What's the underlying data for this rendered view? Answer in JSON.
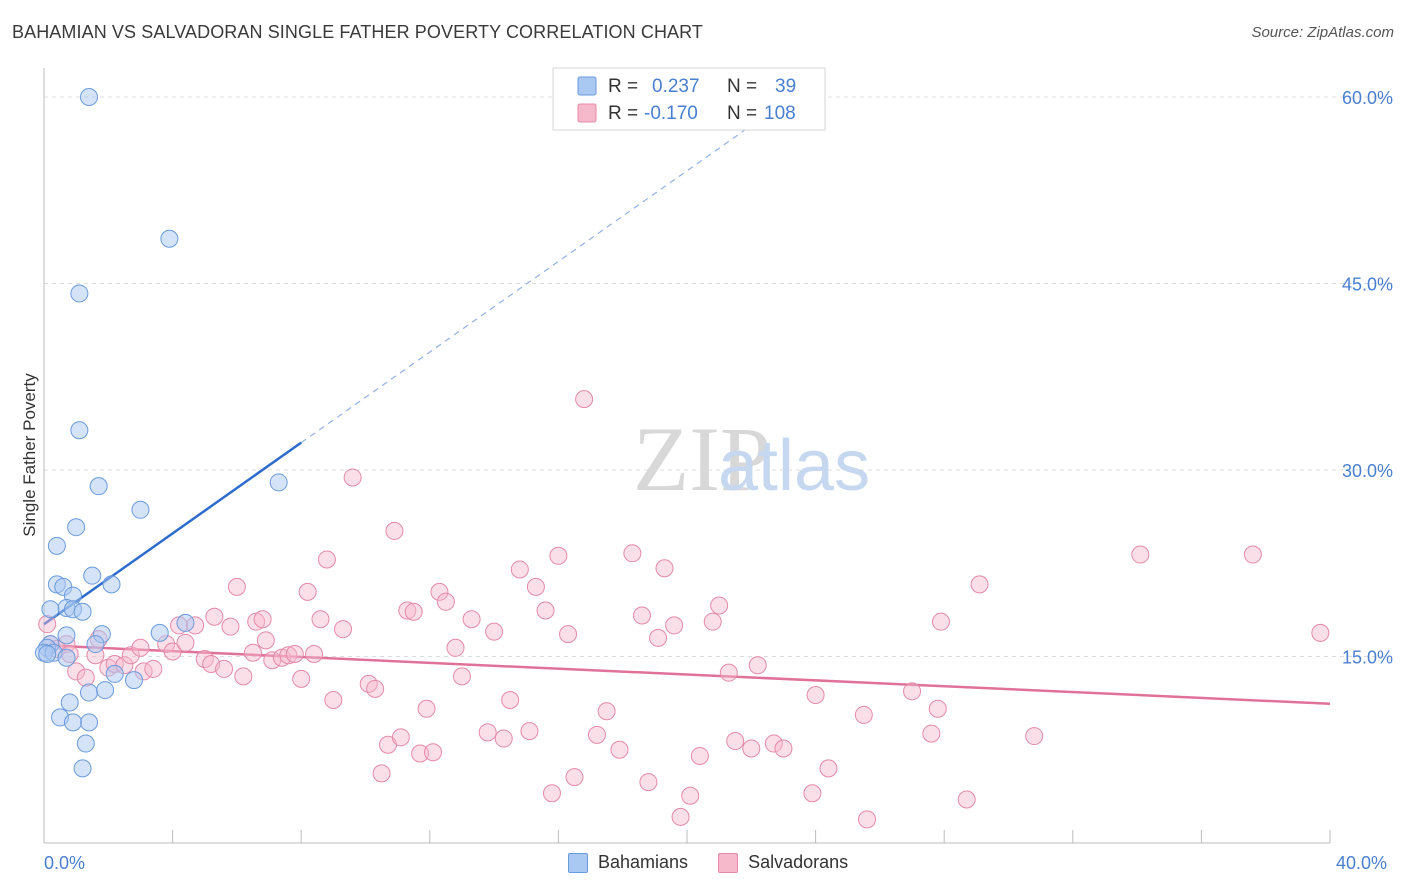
{
  "title": "BAHAMIAN VS SALVADORAN SINGLE FATHER POVERTY CORRELATION CHART",
  "source": "Source: ZipAtlas.com",
  "watermark": {
    "zip": "ZIP",
    "atlas": "atlas"
  },
  "colors": {
    "blue_fill": "#a9c8f2",
    "blue_stroke": "#6a9bdc",
    "blue_line": "#2d6ccc",
    "pink_fill": "#f6b8cb",
    "pink_stroke": "#e48aa8",
    "pink_line": "#e0729a",
    "axis_text": "#4a7fd0",
    "grid": "#dcdcdc"
  },
  "legend": {
    "rows": [
      {
        "r_label": "R =",
        "r_value": "0.237",
        "n_label": "N =",
        "n_value": "39"
      },
      {
        "r_label": "R =",
        "r_value": "-0.170",
        "n_label": "N =",
        "n_value": "108"
      }
    ]
  },
  "bottom_legend": {
    "series1": "Bahamians",
    "series2": "Salvadorans"
  },
  "x_axis": {
    "min_label": "0.0%",
    "max_label": "40.0%"
  },
  "chart_data": {
    "type": "scatter",
    "title": "BAHAMIAN VS SALVADORAN SINGLE FATHER POVERTY CORRELATION CHART",
    "xlabel": "",
    "ylabel": "Single Father Poverty",
    "xlim": [
      0,
      40
    ],
    "ylim": [
      0,
      60
    ],
    "y_ticks": [
      15,
      30,
      45,
      60
    ],
    "y_tick_labels": [
      "15.0%",
      "30.0%",
      "45.0%",
      "60.0%"
    ],
    "grid": "horizontal dashed",
    "legend_position": "top-center",
    "series": [
      {
        "name": "Bahamians",
        "r": 0.237,
        "n": 39,
        "trend": {
          "x0": 0,
          "y0": 17.6,
          "x1": 8,
          "y1": 32.2,
          "dash_to_x": 22.6,
          "dash_to_y": 58.8
        },
        "points": [
          [
            1.4,
            60.0
          ],
          [
            3.9,
            48.6
          ],
          [
            1.1,
            44.2
          ],
          [
            1.1,
            33.2
          ],
          [
            1.7,
            28.7
          ],
          [
            7.3,
            29.0
          ],
          [
            3.0,
            26.8
          ],
          [
            1.0,
            25.4
          ],
          [
            0.4,
            23.9
          ],
          [
            1.5,
            21.5
          ],
          [
            0.4,
            20.8
          ],
          [
            0.6,
            20.6
          ],
          [
            2.1,
            20.8
          ],
          [
            0.9,
            19.9
          ],
          [
            0.7,
            18.9
          ],
          [
            0.9,
            18.8
          ],
          [
            1.2,
            18.6
          ],
          [
            0.2,
            18.8
          ],
          [
            4.4,
            17.7
          ],
          [
            3.6,
            16.9
          ],
          [
            1.8,
            16.8
          ],
          [
            0.7,
            16.7
          ],
          [
            1.6,
            16.0
          ],
          [
            0.2,
            16.0
          ],
          [
            0.1,
            15.7
          ],
          [
            0.0,
            15.3
          ],
          [
            0.3,
            15.3
          ],
          [
            0.1,
            15.2
          ],
          [
            0.7,
            14.9
          ],
          [
            2.2,
            13.6
          ],
          [
            2.8,
            13.1
          ],
          [
            1.4,
            12.1
          ],
          [
            1.9,
            12.3
          ],
          [
            0.8,
            11.3
          ],
          [
            0.5,
            10.1
          ],
          [
            1.4,
            9.7
          ],
          [
            0.9,
            9.7
          ],
          [
            1.3,
            8.0
          ],
          [
            1.2,
            6.0
          ]
        ]
      },
      {
        "name": "Salvadorans",
        "r": -0.17,
        "n": 108,
        "trend": {
          "x0": 0,
          "y0": 15.9,
          "x1": 40,
          "y1": 11.2
        },
        "points": [
          [
            0.1,
            17.6
          ],
          [
            0.2,
            16.0
          ],
          [
            0.7,
            16.0
          ],
          [
            0.4,
            15.6
          ],
          [
            0.8,
            15.2
          ],
          [
            1.6,
            15.1
          ],
          [
            1.7,
            16.4
          ],
          [
            1.0,
            13.8
          ],
          [
            1.3,
            13.3
          ],
          [
            2.0,
            14.1
          ],
          [
            2.2,
            14.4
          ],
          [
            2.5,
            14.3
          ],
          [
            2.7,
            15.1
          ],
          [
            3.0,
            15.7
          ],
          [
            3.1,
            13.8
          ],
          [
            3.4,
            14.0
          ],
          [
            3.8,
            16.0
          ],
          [
            4.0,
            15.4
          ],
          [
            4.2,
            17.5
          ],
          [
            4.4,
            16.1
          ],
          [
            4.7,
            17.5
          ],
          [
            5.0,
            14.8
          ],
          [
            5.2,
            14.4
          ],
          [
            5.3,
            18.2
          ],
          [
            5.6,
            14.0
          ],
          [
            5.8,
            17.4
          ],
          [
            6.0,
            20.6
          ],
          [
            6.2,
            13.4
          ],
          [
            6.5,
            15.3
          ],
          [
            6.6,
            17.8
          ],
          [
            6.8,
            18.0
          ],
          [
            6.9,
            16.3
          ],
          [
            7.1,
            14.7
          ],
          [
            7.4,
            14.9
          ],
          [
            7.6,
            15.1
          ],
          [
            7.8,
            15.2
          ],
          [
            8.0,
            13.2
          ],
          [
            8.2,
            20.2
          ],
          [
            8.4,
            15.2
          ],
          [
            8.6,
            18.0
          ],
          [
            8.8,
            22.8
          ],
          [
            9.0,
            11.5
          ],
          [
            9.3,
            17.2
          ],
          [
            9.6,
            29.4
          ],
          [
            10.1,
            12.8
          ],
          [
            10.3,
            12.4
          ],
          [
            10.5,
            5.6
          ],
          [
            10.7,
            7.9
          ],
          [
            10.9,
            25.1
          ],
          [
            11.1,
            8.5
          ],
          [
            11.3,
            18.7
          ],
          [
            11.5,
            18.6
          ],
          [
            11.7,
            7.2
          ],
          [
            11.9,
            10.8
          ],
          [
            12.1,
            7.3
          ],
          [
            12.3,
            20.2
          ],
          [
            12.5,
            19.4
          ],
          [
            12.8,
            15.7
          ],
          [
            13.0,
            13.4
          ],
          [
            13.3,
            18.0
          ],
          [
            13.8,
            8.9
          ],
          [
            14.0,
            17.0
          ],
          [
            14.3,
            8.4
          ],
          [
            14.5,
            11.5
          ],
          [
            14.8,
            22.0
          ],
          [
            15.1,
            9.0
          ],
          [
            15.3,
            20.6
          ],
          [
            15.6,
            18.7
          ],
          [
            15.8,
            4.0
          ],
          [
            16.0,
            23.1
          ],
          [
            16.3,
            16.8
          ],
          [
            16.5,
            5.3
          ],
          [
            16.8,
            35.7
          ],
          [
            17.2,
            8.7
          ],
          [
            17.5,
            10.6
          ],
          [
            17.9,
            7.5
          ],
          [
            18.3,
            23.3
          ],
          [
            18.6,
            18.3
          ],
          [
            18.8,
            4.9
          ],
          [
            19.1,
            16.5
          ],
          [
            19.3,
            22.1
          ],
          [
            19.6,
            17.5
          ],
          [
            19.8,
            2.1
          ],
          [
            20.1,
            3.8
          ],
          [
            20.4,
            7.0
          ],
          [
            20.8,
            17.8
          ],
          [
            21.0,
            19.1
          ],
          [
            21.3,
            13.7
          ],
          [
            21.5,
            8.2
          ],
          [
            22.0,
            7.6
          ],
          [
            22.2,
            14.3
          ],
          [
            22.7,
            8.0
          ],
          [
            23.0,
            7.6
          ],
          [
            23.9,
            4.0
          ],
          [
            24.0,
            11.9
          ],
          [
            24.4,
            6.0
          ],
          [
            25.5,
            10.3
          ],
          [
            25.6,
            1.9
          ],
          [
            27.0,
            12.2
          ],
          [
            27.6,
            8.8
          ],
          [
            27.8,
            10.8
          ],
          [
            27.9,
            17.8
          ],
          [
            28.7,
            3.5
          ],
          [
            29.1,
            20.8
          ],
          [
            30.8,
            8.6
          ],
          [
            34.1,
            23.2
          ],
          [
            37.6,
            23.2
          ],
          [
            39.7,
            16.9
          ]
        ]
      }
    ]
  }
}
